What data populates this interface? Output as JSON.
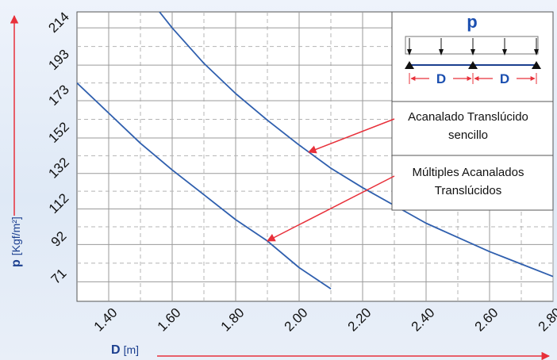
{
  "chart_data": {
    "type": "line",
    "x_label_main": "D",
    "x_label_unit": "[m]",
    "y_label_main": "p",
    "y_label_unit": "[Kgf/m²]",
    "x_ticks": [
      "1.40",
      "1.60",
      "1.80",
      "2.00",
      "2.20",
      "2.40",
      "2.60",
      "2.80"
    ],
    "x_tick_values": [
      1.4,
      1.6,
      1.8,
      2.0,
      2.2,
      2.4,
      2.6,
      2.8
    ],
    "y_ticks": [
      "71",
      "92",
      "112",
      "132",
      "152",
      "173",
      "193",
      "214"
    ],
    "y_tick_values": [
      71,
      92,
      112,
      132,
      152,
      173,
      193,
      214
    ],
    "xlim": [
      1.3,
      2.8
    ],
    "ylim": [
      60,
      223
    ],
    "grid": true,
    "series": [
      {
        "name": "Acanalado Translúcido sencillo",
        "color": "#2f5fae",
        "x": [
          1.56,
          1.6,
          1.7,
          1.8,
          1.9,
          2.0,
          2.1,
          2.2,
          2.3,
          2.4,
          2.5,
          2.6,
          2.7,
          2.8
        ],
        "y": [
          223,
          214,
          194,
          177,
          162,
          148,
          135,
          124,
          114,
          104,
          96,
          88,
          81,
          74
        ]
      },
      {
        "name": "Múltiples Acanalados Translúcidos",
        "color": "#2f5fae",
        "x": [
          1.3,
          1.4,
          1.5,
          1.6,
          1.7,
          1.8,
          1.9,
          2.0,
          2.1
        ],
        "y": [
          183,
          166,
          149,
          134,
          120,
          106,
          94,
          79,
          67
        ]
      }
    ],
    "annotations": [
      {
        "lines": [
          "Acanalado Translúcido",
          "sencillo"
        ],
        "target_x": 2.03,
        "target_y": 144
      },
      {
        "lines": [
          "Múltiples Acanalados",
          "Translúcidos"
        ],
        "target_x": 1.9,
        "target_y": 94
      }
    ],
    "inset": {
      "load_label": "p",
      "span_label": "D"
    }
  }
}
